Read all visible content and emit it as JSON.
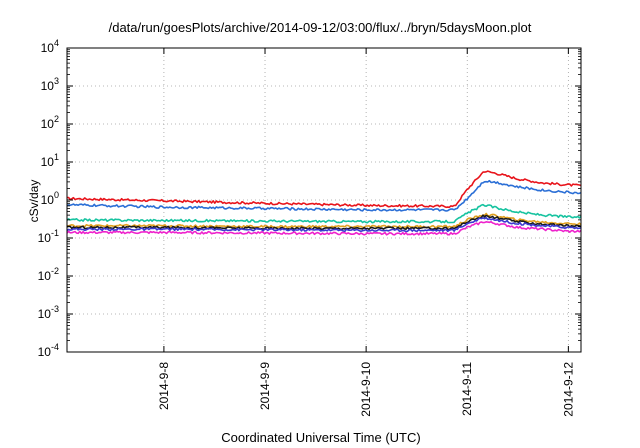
{
  "chart_data": {
    "type": "line",
    "title": "/data/run/goesPlots/archive/2014-09-12/03:00/flux/../bryn/5daysMoon.plot",
    "xlabel": "Coordinated Universal Time (UTC)",
    "ylabel": "cSv/day",
    "y_scale": "log",
    "ylim": [
      0.0001,
      10000
    ],
    "xlim": [
      "2014-09-07T01:00",
      "2014-09-12T03:00"
    ],
    "x_ticks": [
      "2014-09-08",
      "2014-09-09",
      "2014-09-10",
      "2014-09-11",
      "2014-09-12"
    ],
    "x_tick_labels": [
      "2014-9-8",
      "2014-9-9",
      "2014-9-10",
      "2014-9-11",
      "2014-9-12"
    ],
    "y_ticks": [
      {
        "value": 0.0001,
        "base": "10",
        "exp": "-4"
      },
      {
        "value": 0.001,
        "base": "10",
        "exp": "-3"
      },
      {
        "value": 0.01,
        "base": "10",
        "exp": "-2"
      },
      {
        "value": 0.1,
        "base": "10",
        "exp": "-1"
      },
      {
        "value": 1,
        "base": "10",
        "exp": "0"
      },
      {
        "value": 10,
        "base": "10",
        "exp": "1"
      },
      {
        "value": 100,
        "base": "10",
        "exp": "2"
      },
      {
        "value": 1000,
        "base": "10",
        "exp": "3"
      },
      {
        "value": 10000,
        "base": "10",
        "exp": "4"
      }
    ],
    "grid": true,
    "series": [
      {
        "color": "#e8141b",
        "x": [
          "2014-09-07T01:00",
          "2014-09-08T00:00",
          "2014-09-09T00:00",
          "2014-09-10T00:00",
          "2014-09-10T21:00",
          "2014-09-11T00:00",
          "2014-09-11T04:00",
          "2014-09-11T07:00",
          "2014-09-11T12:00",
          "2014-09-11T18:00",
          "2014-09-12T00:00",
          "2014-09-12T03:00"
        ],
        "y": [
          1.1,
          0.95,
          0.82,
          0.72,
          0.68,
          1.9,
          5.8,
          5.0,
          3.6,
          2.8,
          2.5,
          2.4
        ]
      },
      {
        "color": "#2b6fd6",
        "x": [
          "2014-09-07T01:00",
          "2014-09-08T00:00",
          "2014-09-09T00:00",
          "2014-09-10T00:00",
          "2014-09-10T21:00",
          "2014-09-11T00:00",
          "2014-09-11T04:00",
          "2014-09-11T07:00",
          "2014-09-11T12:00",
          "2014-09-11T18:00",
          "2014-09-12T00:00",
          "2014-09-12T03:00"
        ],
        "y": [
          0.75,
          0.65,
          0.6,
          0.55,
          0.55,
          1.1,
          3.2,
          2.9,
          2.2,
          1.8,
          1.6,
          1.5
        ]
      },
      {
        "color": "#17c3a0",
        "x": [
          "2014-09-07T01:00",
          "2014-09-08T00:00",
          "2014-09-09T00:00",
          "2014-09-10T00:00",
          "2014-09-10T21:00",
          "2014-09-11T00:00",
          "2014-09-11T04:00",
          "2014-09-11T07:00",
          "2014-09-11T12:00",
          "2014-09-11T18:00",
          "2014-09-12T00:00",
          "2014-09-12T03:00"
        ],
        "y": [
          0.3,
          0.29,
          0.28,
          0.27,
          0.27,
          0.45,
          0.75,
          0.62,
          0.48,
          0.4,
          0.36,
          0.35
        ]
      },
      {
        "color": "#e0a020",
        "x": [
          "2014-09-07T01:00",
          "2014-09-08T00:00",
          "2014-09-09T00:00",
          "2014-09-10T00:00",
          "2014-09-10T21:00",
          "2014-09-11T00:00",
          "2014-09-11T04:00",
          "2014-09-11T07:00",
          "2014-09-11T12:00",
          "2014-09-11T18:00",
          "2014-09-12T00:00",
          "2014-09-12T03:00"
        ],
        "y": [
          0.21,
          0.21,
          0.2,
          0.2,
          0.2,
          0.3,
          0.42,
          0.38,
          0.3,
          0.26,
          0.24,
          0.23
        ]
      },
      {
        "color": "#1a1a1a",
        "x": [
          "2014-09-07T01:00",
          "2014-09-08T00:00",
          "2014-09-09T00:00",
          "2014-09-10T00:00",
          "2014-09-10T21:00",
          "2014-09-11T00:00",
          "2014-09-11T04:00",
          "2014-09-11T07:00",
          "2014-09-11T12:00",
          "2014-09-11T18:00",
          "2014-09-12T00:00",
          "2014-09-12T03:00"
        ],
        "y": [
          0.19,
          0.19,
          0.18,
          0.18,
          0.18,
          0.27,
          0.38,
          0.34,
          0.27,
          0.23,
          0.21,
          0.2
        ]
      },
      {
        "color": "#3a3ad0",
        "x": [
          "2014-09-07T01:00",
          "2014-09-08T00:00",
          "2014-09-09T00:00",
          "2014-09-10T00:00",
          "2014-09-10T21:00",
          "2014-09-11T00:00",
          "2014-09-11T04:00",
          "2014-09-11T07:00",
          "2014-09-11T12:00",
          "2014-09-11T18:00",
          "2014-09-12T00:00",
          "2014-09-12T03:00"
        ],
        "y": [
          0.17,
          0.17,
          0.165,
          0.16,
          0.16,
          0.24,
          0.34,
          0.3,
          0.24,
          0.21,
          0.19,
          0.18
        ]
      },
      {
        "color": "#ee22cc",
        "x": [
          "2014-09-07T01:00",
          "2014-09-08T00:00",
          "2014-09-09T00:00",
          "2014-09-10T00:00",
          "2014-09-10T21:00",
          "2014-09-11T00:00",
          "2014-09-11T04:00",
          "2014-09-11T07:00",
          "2014-09-11T12:00",
          "2014-09-11T18:00",
          "2014-09-12T00:00",
          "2014-09-12T03:00"
        ],
        "y": [
          0.14,
          0.14,
          0.135,
          0.13,
          0.13,
          0.19,
          0.27,
          0.24,
          0.19,
          0.17,
          0.15,
          0.15
        ]
      }
    ]
  }
}
